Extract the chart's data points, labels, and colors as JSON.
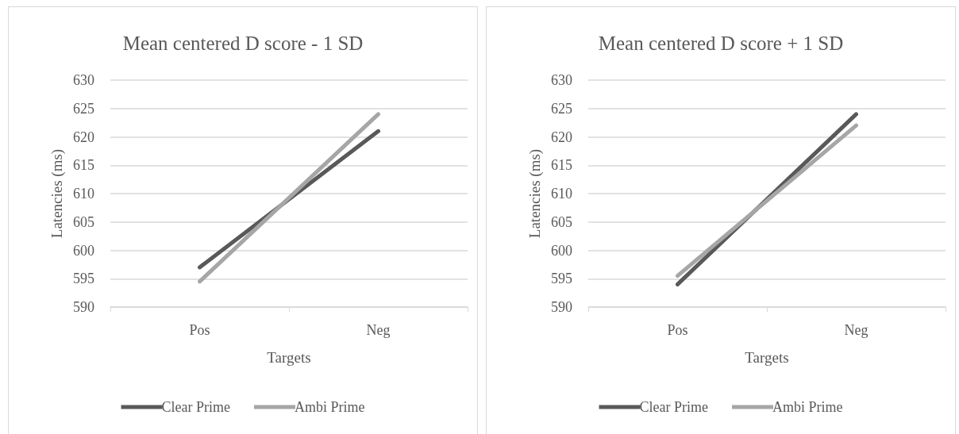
{
  "chart_data": [
    {
      "type": "line",
      "title": "Mean centered D score - 1 SD",
      "xlabel": "Targets",
      "ylabel": "Latencies (ms)",
      "categories": [
        "Pos",
        "Neg"
      ],
      "series": [
        {
          "name": "Clear Prime",
          "color": "#595959",
          "values": [
            597,
            621
          ]
        },
        {
          "name": "Ambi Prime",
          "color": "#a6a6a6",
          "values": [
            594.5,
            624
          ]
        }
      ],
      "ylim": [
        590,
        630
      ],
      "yticks": [
        590,
        595,
        600,
        605,
        610,
        615,
        620,
        625,
        630
      ],
      "grid": "y",
      "legend": "bottom",
      "marker": "none",
      "line_style": "solid"
    },
    {
      "type": "line",
      "title": "Mean centered D score + 1 SD",
      "xlabel": "Targets",
      "ylabel": "Latencies (ms)",
      "categories": [
        "Pos",
        "Neg"
      ],
      "series": [
        {
          "name": "Clear Prime",
          "color": "#595959",
          "values": [
            594,
            624
          ]
        },
        {
          "name": "Ambi Prime",
          "color": "#a6a6a6",
          "values": [
            595.5,
            622
          ]
        }
      ],
      "ylim": [
        590,
        630
      ],
      "yticks": [
        590,
        595,
        600,
        605,
        610,
        615,
        620,
        625,
        630
      ],
      "grid": "y",
      "legend": "bottom",
      "marker": "none",
      "line_style": "solid"
    }
  ]
}
